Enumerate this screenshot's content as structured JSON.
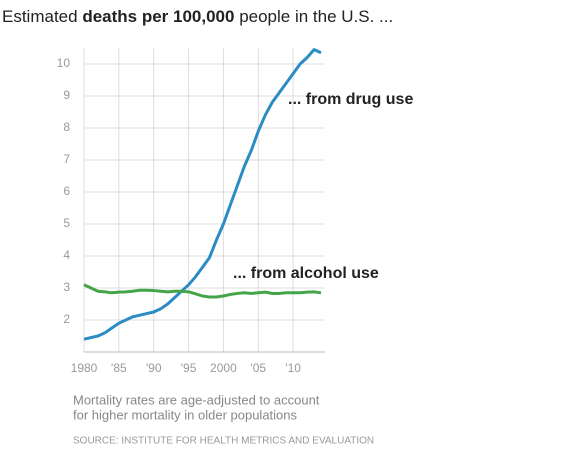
{
  "chart_data": {
    "type": "line",
    "title": [
      "Estimated ",
      "deaths per 100,000",
      " people in the U.S. ..."
    ],
    "x": [
      1980,
      1981,
      1982,
      1983,
      1984,
      1985,
      1986,
      1987,
      1988,
      1989,
      1990,
      1991,
      1992,
      1993,
      1994,
      1995,
      1996,
      1997,
      1998,
      1999,
      2000,
      2001,
      2002,
      2003,
      2004,
      2005,
      2006,
      2007,
      2008,
      2009,
      2010,
      2011,
      2012,
      2013,
      2014
    ],
    "series": [
      {
        "name": "... from drug use",
        "color": "#2b8cc4",
        "values": [
          1.4,
          1.45,
          1.5,
          1.6,
          1.75,
          1.9,
          2.0,
          2.1,
          2.15,
          2.2,
          2.25,
          2.35,
          2.5,
          2.7,
          2.9,
          3.1,
          3.35,
          3.65,
          3.95,
          4.5,
          5.0,
          5.6,
          6.2,
          6.8,
          7.3,
          7.9,
          8.4,
          8.8,
          9.1,
          9.4,
          9.7,
          10.0,
          10.2,
          10.45,
          10.35
        ]
      },
      {
        "name": "... from alcohol use",
        "color": "#44a548",
        "values": [
          3.1,
          3.0,
          2.9,
          2.88,
          2.85,
          2.87,
          2.88,
          2.9,
          2.93,
          2.93,
          2.92,
          2.9,
          2.88,
          2.9,
          2.9,
          2.88,
          2.82,
          2.75,
          2.72,
          2.72,
          2.75,
          2.8,
          2.83,
          2.85,
          2.83,
          2.85,
          2.87,
          2.83,
          2.83,
          2.85,
          2.85,
          2.85,
          2.87,
          2.88,
          2.85
        ]
      }
    ],
    "xlim": [
      1980,
      2014
    ],
    "xticks": [
      1980,
      {
        "value": 1985,
        "label": "'85"
      },
      {
        "value": 1990,
        "label": "'90"
      },
      {
        "value": 1995,
        "label": "'95"
      },
      2000,
      {
        "value": 2005,
        "label": "'05"
      },
      {
        "value": 2010,
        "label": "'10"
      }
    ],
    "ylim": [
      1,
      10.5
    ],
    "yticks": [
      2,
      3,
      4,
      5,
      6,
      7,
      8,
      9,
      10
    ],
    "grid": true,
    "note": [
      "Mortality rates are age-adjusted to account",
      "for higher mortality in older populations"
    ],
    "source": "SOURCE: INSTITUTE FOR HEALTH METRICS AND EVALUATION"
  }
}
